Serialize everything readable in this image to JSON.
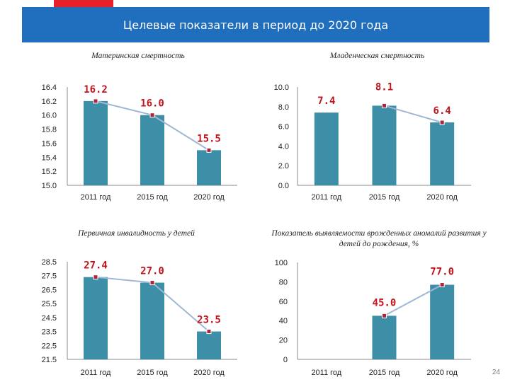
{
  "header": {
    "title": "Целевые показатели в период до 2020 года"
  },
  "colors": {
    "header": "#1f6fbe",
    "accent": "#e8202a",
    "bar": "#3d8fa8",
    "line": "#9fb7d6",
    "marker": "#b0243a",
    "label": "#c0141d"
  },
  "page_number": "24",
  "chart_data": [
    {
      "type": "bar",
      "title": "Материнская смертность",
      "categories": [
        "2011 год",
        "2015 год",
        "2020 год"
      ],
      "values": [
        16.2,
        16.0,
        15.5
      ],
      "value_labels": [
        "16.2",
        "16.0",
        "15.5"
      ],
      "ylim": [
        15.0,
        16.4
      ],
      "ytick_labels": [
        "15.0",
        "15.2",
        "15.4",
        "15.6",
        "15.8",
        "16.0",
        "16.2",
        "16.4"
      ],
      "line_overlay": true
    },
    {
      "type": "bar",
      "title": "Младенческая смертность",
      "categories": [
        "2011 год",
        "2015 год",
        "2020 год"
      ],
      "values": [
        7.4,
        8.1,
        6.4
      ],
      "value_labels": [
        "7.4",
        "8.1",
        "6.4"
      ],
      "ylim": [
        0,
        10
      ],
      "ytick_labels": [
        "0.0",
        "2.0",
        "4.0",
        "6.0",
        "8.0",
        "10.0"
      ],
      "line_overlay_from": 1
    },
    {
      "type": "bar",
      "title": "Первичная инвалидность у детей",
      "categories": [
        "2011 год",
        "2015 год",
        "2020 год"
      ],
      "values": [
        27.4,
        27.0,
        23.5
      ],
      "value_labels": [
        "27.4",
        "27.0",
        "23.5"
      ],
      "ylim": [
        21.5,
        28.5
      ],
      "ytick_labels": [
        "21.5",
        "22.5",
        "23.5",
        "24.5",
        "25.5",
        "26.5",
        "27.5",
        "28.5"
      ],
      "line_overlay": true
    },
    {
      "type": "bar",
      "title": "Показатель выявляемости врожденных аномалий развития у детей до рождения, %",
      "categories": [
        "2011 год",
        "2015 год",
        "2020 год"
      ],
      "values": [
        null,
        45.0,
        77.0
      ],
      "value_labels": [
        "",
        "45.0",
        "77.0"
      ],
      "ylim": [
        0,
        100
      ],
      "ytick_labels": [
        "0",
        "20",
        "40",
        "60",
        "80",
        "100"
      ],
      "line_overlay": true
    }
  ]
}
